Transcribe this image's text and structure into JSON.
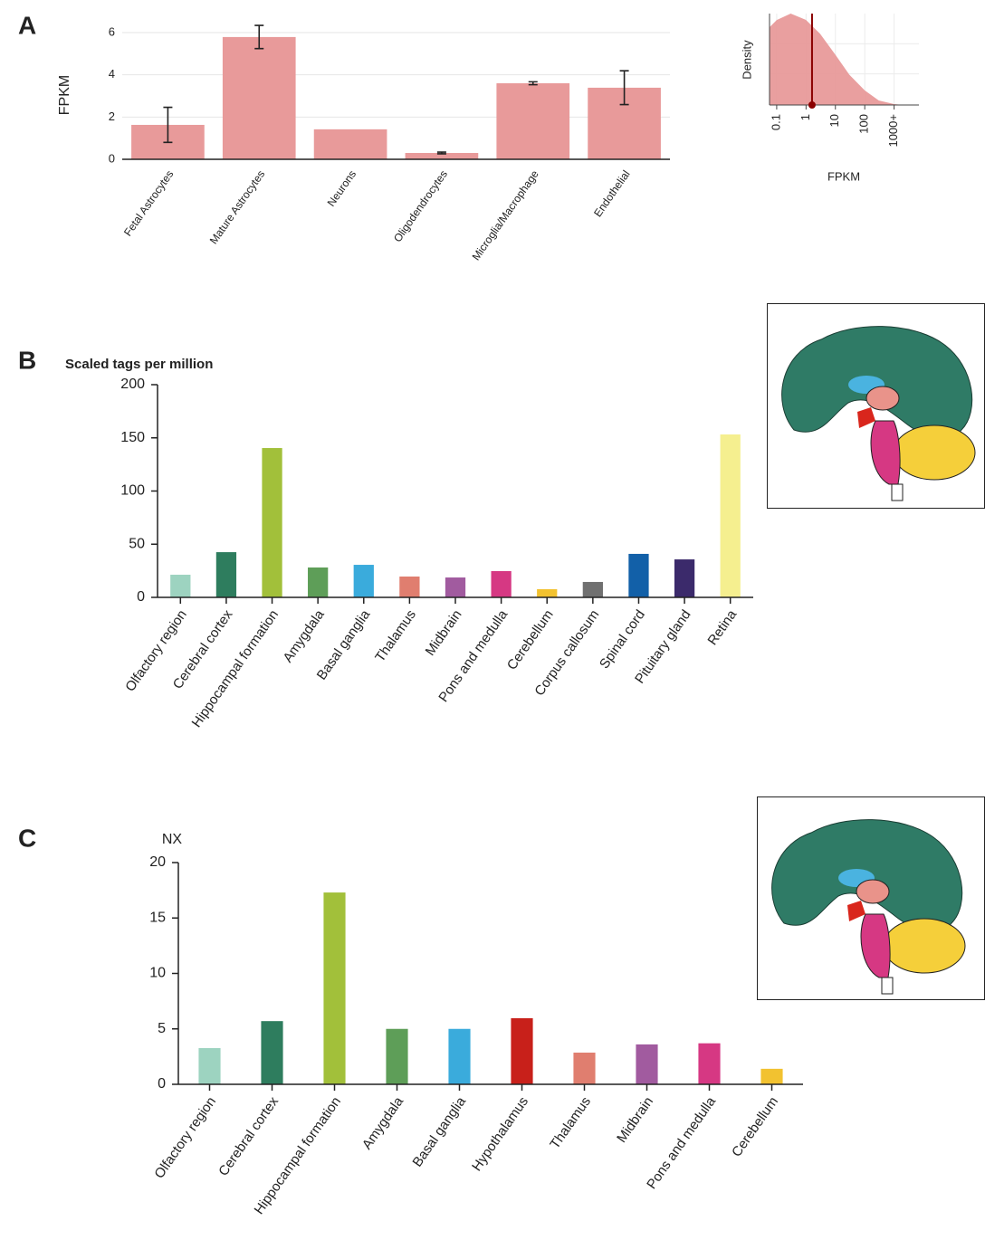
{
  "chart_data": [
    {
      "type": "bar",
      "panel": "A",
      "ylabel": "FPKM",
      "categories": [
        "Fetal Astrocytes",
        "Mature Astrocytes",
        "Neurons",
        "Oligodendrocytes",
        "Microglia/Macrophage",
        "Endothelial"
      ],
      "values": [
        1.63,
        5.79,
        1.42,
        0.3,
        3.6,
        3.39
      ],
      "errors": [
        0.83,
        0.55,
        null,
        0.04,
        0.07,
        0.8
      ],
      "color": "#e89a9a",
      "ylim": [
        0,
        6.3
      ],
      "yticks": [
        0,
        2,
        4,
        6
      ],
      "grid": true
    },
    {
      "type": "density",
      "ylabel": "Density",
      "xlabel": "FPKM",
      "x": [
        0.057,
        0.1,
        0.3,
        1,
        3,
        10,
        30,
        100,
        300,
        1000,
        2000
      ],
      "values": [
        0.85,
        0.93,
        1.0,
        0.93,
        0.78,
        0.55,
        0.33,
        0.16,
        0.05,
        0.01,
        0
      ],
      "marker": 1.6,
      "color": "#e89a9a",
      "marker_color": "#8b0000",
      "log_x": true,
      "xlim": [
        0.057,
        7000
      ],
      "ylim": [
        0,
        1
      ],
      "xticks": [
        0.1,
        1,
        10,
        100,
        {
          "value": 1000,
          "label": "1000+"
        }
      ],
      "grid": true
    },
    {
      "type": "bar",
      "panel": "B",
      "ylabel": "Scaled tags per million",
      "categories": [
        "Olfactory region",
        "Cerebral cortex",
        "Hippocampal formation",
        "Amygdala",
        "Basal ganglia",
        "Thalamus",
        "Midbrain",
        "Pons and medulla",
        "Cerebellum",
        "Corpus callosum",
        "Spinal cord",
        "Pituitary gland",
        "Retina"
      ],
      "values": [
        21.3,
        42.5,
        140.4,
        28.1,
        30.6,
        19.6,
        18.7,
        24.7,
        7.7,
        14.5,
        40.9,
        35.7,
        153.2
      ],
      "colors": [
        "#9dd3c0",
        "#2e7d5e",
        "#a2c03a",
        "#5e9e58",
        "#3aabdc",
        "#e07e6f",
        "#a15b9f",
        "#d63883",
        "#f2c230",
        "#707070",
        "#1260a8",
        "#3b2a6b",
        "#f5ef8f"
      ],
      "ylim": [
        0,
        200
      ],
      "yticks": [
        0,
        50,
        100,
        150,
        200
      ],
      "grid": false
    },
    {
      "type": "bar",
      "panel": "C",
      "ylabel": "NX",
      "categories": [
        "Olfactory region",
        "Cerebral cortex",
        "Hippocampal formation",
        "Amygdala",
        "Basal ganglia",
        "Hypothalamus",
        "Thalamus",
        "Midbrain",
        "Pons and medulla",
        "Cerebellum"
      ],
      "values": [
        3.27,
        5.7,
        17.3,
        5.0,
        5.0,
        5.96,
        2.86,
        3.6,
        3.7,
        1.4
      ],
      "colors": [
        "#9dd3c0",
        "#2e7d5e",
        "#a2c03a",
        "#5e9e58",
        "#3aabdc",
        "#c8201a",
        "#e07e6f",
        "#a15b9f",
        "#d63883",
        "#f2c230"
      ],
      "ylim": [
        0,
        20
      ],
      "yticks": [
        0,
        5,
        10,
        15,
        20
      ],
      "grid": false
    }
  ]
}
